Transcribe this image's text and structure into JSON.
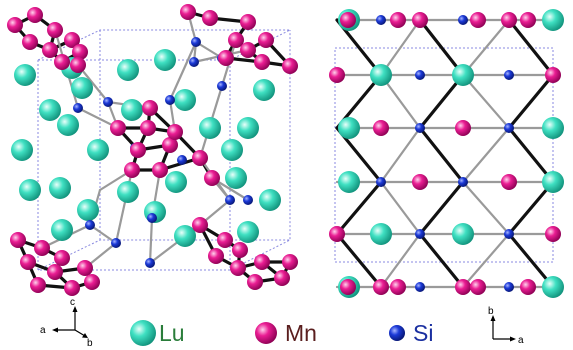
{
  "colors": {
    "lu": "#2fd6b8",
    "mn": "#e0118a",
    "si": "#1430c8",
    "bond_dark": "#111111",
    "bond_grey": "#9a9a9a",
    "cell_line": "#8a8ae0",
    "label_lu": "#2a7d3a",
    "label_mn": "#5a1e1e",
    "label_si": "#1a2fa0"
  },
  "legend": [
    {
      "atom": "Lu",
      "icon": "lu-sphere-icon"
    },
    {
      "atom": "Mn",
      "icon": "mn-sphere-icon"
    },
    {
      "atom": "Si",
      "icon": "si-sphere-icon"
    }
  ],
  "axes_left": {
    "up": "c",
    "left": "a",
    "diag": "b"
  },
  "axes_right": {
    "up": "b",
    "right": "a"
  }
}
